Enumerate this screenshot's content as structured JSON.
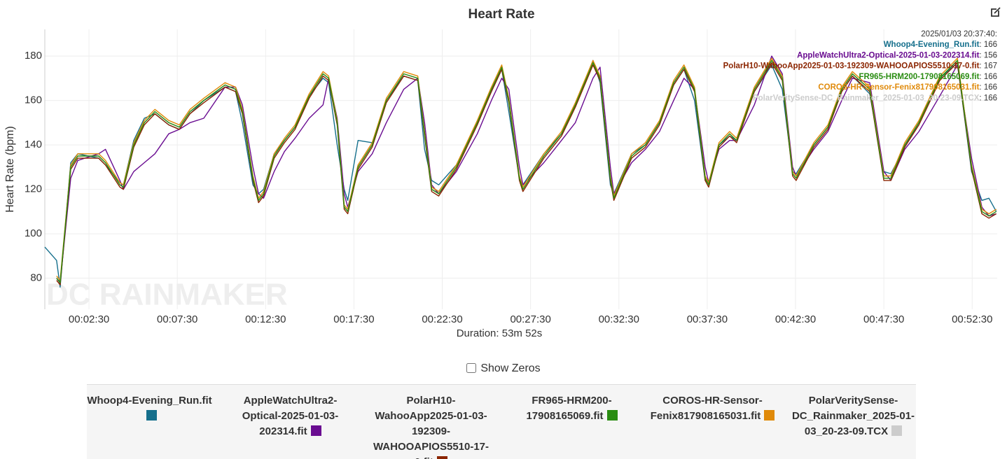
{
  "chart_data": {
    "type": "line",
    "title": "Heart Rate",
    "y_label": "Heart Rate (bpm)",
    "x_label": "Duration: 53m 52s",
    "watermark": "DC RAINMAKER",
    "show_zeros_label": "Show Zeros",
    "xlim": [
      0,
      3235
    ],
    "ylim": [
      66,
      192
    ],
    "grid": true,
    "yticks": [
      80,
      100,
      120,
      140,
      160,
      180
    ],
    "xticks": [
      {
        "value": 150,
        "label": "00:02:30"
      },
      {
        "value": 450,
        "label": "00:07:30"
      },
      {
        "value": 750,
        "label": "00:12:30"
      },
      {
        "value": 1050,
        "label": "00:17:30"
      },
      {
        "value": 1350,
        "label": "00:22:30"
      },
      {
        "value": 1650,
        "label": "00:27:30"
      },
      {
        "value": 1950,
        "label": "00:32:30"
      },
      {
        "value": 2250,
        "label": "00:37:30"
      },
      {
        "value": 2550,
        "label": "00:42:30"
      },
      {
        "value": 2850,
        "label": "00:47:30"
      },
      {
        "value": 3150,
        "label": "00:52:30"
      }
    ],
    "x": [
      0,
      40,
      52,
      88,
      112,
      183,
      206,
      255,
      267,
      302,
      338,
      374,
      421,
      457,
      493,
      540,
      612,
      648,
      671,
      707,
      726,
      743,
      779,
      814,
      850,
      898,
      945,
      964,
      993,
      1017,
      1029,
      1064,
      1112,
      1160,
      1219,
      1267,
      1290,
      1314,
      1338,
      1398,
      1469,
      1517,
      1552,
      1576,
      1612,
      1624,
      1695,
      1755,
      1802,
      1862,
      1886,
      1921,
      1933,
      1993,
      2040,
      2088,
      2136,
      2171,
      2207,
      2243,
      2255,
      2290,
      2326,
      2350,
      2410,
      2469,
      2505,
      2540,
      2552,
      2612,
      2660,
      2707,
      2743,
      2802,
      2850,
      2874,
      2921,
      2969,
      3040,
      3100,
      3148,
      3183,
      3207,
      3232
    ],
    "tooltip": {
      "time": "2025/01/03 20:37:40:",
      "values": [
        166,
        156,
        167,
        166,
        166,
        166
      ]
    },
    "series": [
      {
        "name": "Whoop4-Evening_Run.fit",
        "color": "#156f8c",
        "values": [
          94,
          88,
          76,
          132,
          136,
          134,
          131,
          123,
          122,
          142,
          152,
          154,
          149,
          147,
          154,
          160,
          166,
          164,
          150,
          122,
          118,
          120,
          136,
          142,
          148,
          162,
          170,
          168,
          140,
          120,
          115,
          142,
          141,
          160,
          171,
          169,
          138,
          124,
          122,
          131,
          150,
          164,
          174,
          155,
          125,
          122,
          136,
          145,
          158,
          178,
          168,
          122,
          118,
          136,
          140,
          150,
          167,
          174,
          160,
          124,
          123,
          140,
          144,
          142,
          164,
          176,
          165,
          128,
          127,
          140,
          148,
          164,
          171,
          163,
          128,
          127,
          139,
          150,
          170,
          177,
          128,
          115,
          116,
          110
        ]
      },
      {
        "name": "AppleWatchUltra2-Optical-2025-01-03-202314.fit",
        "color": "#6a0d91",
        "values": [
          null,
          80,
          78,
          125,
          133,
          136,
          138,
          124,
          120,
          128,
          132,
          136,
          145,
          147,
          150,
          152,
          166,
          166,
          158,
          130,
          118,
          116,
          128,
          137,
          143,
          152,
          158,
          170,
          152,
          118,
          112,
          128,
          136,
          150,
          165,
          170,
          150,
          122,
          118,
          128,
          145,
          160,
          170,
          165,
          130,
          122,
          132,
          142,
          150,
          170,
          175,
          130,
          118,
          132,
          138,
          146,
          160,
          170,
          165,
          130,
          123,
          138,
          142,
          142,
          158,
          180,
          172,
          130,
          126,
          138,
          146,
          160,
          170,
          168,
          128,
          124,
          138,
          146,
          162,
          176,
          134,
          112,
          108,
          109
        ]
      },
      {
        "name": "PolarH10-WahooApp2025-01-03-192309-WAHOOAPIOS5510-17-0.fit",
        "color": "#8b2500",
        "values": [
          null,
          79,
          77,
          129,
          134,
          134,
          131,
          121,
          120,
          139,
          149,
          154,
          149,
          147,
          154,
          159,
          166,
          164,
          154,
          124,
          114,
          117,
          134,
          141,
          147,
          161,
          171,
          169,
          149,
          111,
          109,
          129,
          139,
          159,
          171,
          169,
          144,
          119,
          117,
          129,
          149,
          164,
          174,
          159,
          124,
          119,
          134,
          144,
          157,
          176,
          169,
          124,
          115,
          134,
          139,
          149,
          167,
          174,
          164,
          124,
          121,
          139,
          144,
          141,
          164,
          177,
          169,
          126,
          124,
          139,
          147,
          164,
          171,
          164,
          124,
          124,
          139,
          149,
          169,
          177,
          129,
          109,
          107,
          109
        ]
      },
      {
        "name": "FR965-HRM200-17908165069.fit",
        "color": "#2a8c12",
        "values": [
          null,
          80,
          78,
          130,
          135,
          135,
          132,
          122,
          121,
          140,
          150,
          155,
          150,
          148,
          155,
          160,
          167,
          165,
          155,
          125,
          115,
          118,
          135,
          142,
          148,
          162,
          172,
          170,
          150,
          112,
          110,
          130,
          140,
          160,
          172,
          170,
          145,
          120,
          118,
          130,
          150,
          165,
          175,
          160,
          125,
          120,
          135,
          145,
          158,
          177,
          170,
          125,
          116,
          135,
          140,
          150,
          168,
          175,
          165,
          125,
          122,
          140,
          145,
          142,
          165,
          178,
          170,
          127,
          125,
          140,
          148,
          165,
          172,
          165,
          125,
          125,
          140,
          150,
          170,
          178,
          130,
          110,
          108,
          110
        ]
      },
      {
        "name": "COROS-HR-Sensor-Fenix817908165031.fit",
        "color": "#e08a0a",
        "values": [
          null,
          81,
          79,
          131,
          136,
          136,
          133,
          123,
          122,
          141,
          151,
          156,
          151,
          149,
          156,
          161,
          168,
          166,
          156,
          126,
          116,
          119,
          136,
          143,
          149,
          163,
          173,
          171,
          151,
          113,
          111,
          131,
          141,
          161,
          173,
          171,
          146,
          121,
          119,
          131,
          151,
          166,
          176,
          161,
          126,
          121,
          136,
          146,
          159,
          178,
          171,
          126,
          117,
          136,
          141,
          151,
          169,
          176,
          166,
          126,
          123,
          141,
          146,
          143,
          166,
          179,
          171,
          128,
          126,
          141,
          149,
          166,
          173,
          166,
          126,
          126,
          141,
          151,
          171,
          179,
          131,
          111,
          109,
          111
        ]
      },
      {
        "name": "PolarVeritySense-DC_Rainmaker_2025-01-03_20-23-09.TCX",
        "color": "#cccccc",
        "values": [
          null,
          80,
          77,
          131,
          135,
          135,
          132,
          122,
          121,
          140,
          150,
          155,
          150,
          148,
          155,
          160,
          167,
          165,
          155,
          125,
          115,
          118,
          135,
          142,
          148,
          162,
          172,
          170,
          150,
          113,
          110,
          131,
          140,
          160,
          172,
          170,
          145,
          121,
          118,
          130,
          150,
          165,
          175,
          160,
          125,
          120,
          135,
          145,
          158,
          177,
          170,
          125,
          116,
          135,
          140,
          150,
          168,
          175,
          165,
          125,
          122,
          140,
          145,
          142,
          165,
          178,
          170,
          127,
          125,
          140,
          148,
          165,
          172,
          165,
          125,
          125,
          140,
          150,
          170,
          178,
          130,
          110,
          108,
          110
        ]
      }
    ]
  }
}
